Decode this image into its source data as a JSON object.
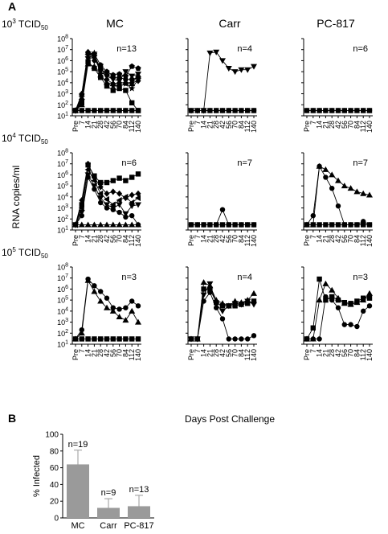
{
  "panel_a_label": "A",
  "panel_b_label": "B",
  "column_titles": [
    "MC",
    "Carr",
    "PC-817"
  ],
  "row_dose_base": [
    "10",
    "10",
    "10"
  ],
  "row_dose_exp": [
    "3",
    "4",
    "5"
  ],
  "row_dose_unit_main": "TCID",
  "row_dose_unit_sub": "50",
  "y_axis_label": "RNA copies/ml",
  "x_axis_label": "Days Post Challenge",
  "x_tick_labels": [
    "Pre",
    "7",
    "14",
    "21",
    "28",
    "42",
    "56",
    "70",
    "84",
    "112",
    "140"
  ],
  "y_tick_exponents": [
    "1",
    "2",
    "3",
    "4",
    "5",
    "6",
    "7",
    "8"
  ],
  "colors": {
    "bar": "#9a9a9a",
    "marker": "#000000",
    "axis": "#000000"
  },
  "chart_data": [
    {
      "type": "line",
      "row": 0,
      "col": 0,
      "title": "MC",
      "dose": "10^3 TCID50",
      "n_label": "n=13",
      "yscale": "log",
      "ylim": [
        10,
        100000000
      ],
      "x": [
        "Pre",
        "7",
        "14",
        "21",
        "28",
        "42",
        "56",
        "70",
        "84",
        "112",
        "140"
      ],
      "series": [
        {
          "marker": "circle",
          "values": [
            30,
            300,
            4000000,
            3000000,
            200000,
            50000,
            30000,
            30000,
            20000,
            20000,
            30000
          ]
        },
        {
          "marker": "pentagon",
          "values": [
            30,
            800,
            5000000,
            4000000,
            400000,
            100000,
            50000,
            60000,
            40000,
            300000,
            200000
          ]
        },
        {
          "marker": "star",
          "values": [
            30,
            500,
            3000000,
            5000000,
            60000,
            8000,
            5000,
            5000,
            8000,
            3000,
            20000
          ]
        },
        {
          "marker": "triangle-down",
          "values": [
            30,
            200,
            1500000,
            2000000,
            100000,
            40000,
            20000,
            15000,
            100000,
            40000,
            60000
          ]
        },
        {
          "marker": "diamond",
          "values": [
            30,
            1000,
            6000000,
            1000000,
            300000,
            20000,
            8000,
            10000,
            10000,
            10000,
            15000
          ]
        },
        {
          "marker": "square",
          "values": [
            30,
            150,
            800000,
            200000,
            30000,
            5000,
            2000,
            3000,
            2000,
            150,
            30
          ]
        },
        {
          "marker": "triangle-up",
          "values": [
            30,
            100,
            500000,
            300000,
            50000,
            10000,
            8000,
            9000,
            10000,
            8000,
            50000
          ]
        },
        {
          "marker": "circle",
          "values": [
            30,
            30,
            30,
            30,
            30,
            30,
            30,
            30,
            30,
            30,
            30
          ]
        },
        {
          "marker": "square",
          "values": [
            30,
            30,
            30,
            30,
            30,
            30,
            30,
            30,
            30,
            30,
            30
          ]
        }
      ]
    },
    {
      "type": "line",
      "row": 0,
      "col": 1,
      "title": "Carr",
      "dose": "10^3 TCID50",
      "n_label": "n=4",
      "yscale": "log",
      "ylim": [
        10,
        100000000
      ],
      "x": [
        "Pre",
        "7",
        "14",
        "21",
        "28",
        "42",
        "56",
        "70",
        "84",
        "112",
        "140"
      ],
      "series": [
        {
          "marker": "triangle-down",
          "values": [
            30,
            30,
            30,
            5000000,
            6000000,
            1000000,
            200000,
            100000,
            150000,
            150000,
            300000
          ],
          "start_index": 2
        },
        {
          "marker": "square",
          "values": [
            30,
            30,
            30,
            30,
            30,
            30,
            30,
            30,
            30,
            30,
            30
          ]
        },
        {
          "marker": "circle",
          "values": [
            30,
            30,
            30,
            30,
            30,
            30,
            30,
            30,
            30,
            30,
            30
          ]
        }
      ]
    },
    {
      "type": "line",
      "row": 0,
      "col": 2,
      "title": "PC-817",
      "dose": "10^3 TCID50",
      "n_label": "n=6",
      "yscale": "log",
      "ylim": [
        10,
        100000000
      ],
      "x": [
        "Pre",
        "7",
        "14",
        "21",
        "28",
        "42",
        "56",
        "70",
        "84",
        "112",
        "140"
      ],
      "series": [
        {
          "marker": "circle",
          "values": [
            30,
            30,
            30,
            30,
            30,
            30,
            30,
            30,
            30,
            30,
            30
          ]
        },
        {
          "marker": "square",
          "values": [
            30,
            30,
            30,
            30,
            30,
            30,
            30,
            30,
            30,
            30,
            30
          ]
        }
      ]
    },
    {
      "type": "line",
      "row": 1,
      "col": 0,
      "title": "MC",
      "dose": "10^4 TCID50",
      "n_label": "n=6",
      "yscale": "log",
      "ylim": [
        10,
        100000000
      ],
      "x": [
        "Pre",
        "7",
        "14",
        "21",
        "28",
        "42",
        "56",
        "70",
        "84",
        "112",
        "140"
      ],
      "series": [
        {
          "marker": "square",
          "values": [
            30,
            2000,
            8000000,
            800000,
            200000,
            200000,
            300000,
            500000,
            300000,
            600000,
            1200000
          ]
        },
        {
          "marker": "diamond",
          "values": [
            30,
            5000,
            10000000,
            600000,
            80000,
            20000,
            30000,
            20000,
            8000,
            15000,
            20000
          ]
        },
        {
          "marker": "triangle-left",
          "values": [
            30,
            1000,
            3000000,
            300000,
            20000,
            6000,
            2000,
            5000,
            10000,
            3000,
            8000
          ]
        },
        {
          "marker": "triangle-down",
          "values": [
            30,
            400,
            1000000,
            100000,
            8000,
            2000,
            1000,
            2000,
            300,
            1500,
            2000
          ]
        },
        {
          "marker": "circle",
          "values": [
            30,
            200,
            600000,
            50000,
            3000,
            1000,
            700,
            400,
            150,
            200,
            30
          ]
        },
        {
          "marker": "triangle-up",
          "values": [
            30,
            30,
            30,
            30,
            30,
            30,
            30,
            30,
            30,
            30,
            30
          ]
        }
      ]
    },
    {
      "type": "line",
      "row": 1,
      "col": 1,
      "title": "Carr",
      "dose": "10^4 TCID50",
      "n_label": "n=7",
      "yscale": "log",
      "ylim": [
        10,
        100000000
      ],
      "x": [
        "Pre",
        "7",
        "14",
        "21",
        "28",
        "42",
        "56",
        "70",
        "84",
        "112",
        "140"
      ],
      "series": [
        {
          "marker": "circle",
          "values": [
            30,
            30,
            30,
            30,
            30,
            700,
            30,
            30,
            30,
            30,
            30
          ]
        },
        {
          "marker": "square",
          "values": [
            30,
            30,
            30,
            30,
            30,
            30,
            30,
            30,
            30,
            30,
            30
          ]
        }
      ]
    },
    {
      "type": "line",
      "row": 1,
      "col": 2,
      "title": "PC-817",
      "dose": "10^4 TCID50",
      "n_label": "n=7",
      "yscale": "log",
      "ylim": [
        10,
        100000000
      ],
      "x": [
        "Pre",
        "7",
        "14",
        "21",
        "28",
        "42",
        "56",
        "70",
        "84",
        "112",
        "140"
      ],
      "series": [
        {
          "marker": "triangle-up",
          "values": [
            30,
            30,
            6000000,
            3000000,
            1000000,
            300000,
            100000,
            60000,
            30000,
            20000,
            15000
          ]
        },
        {
          "marker": "circle",
          "values": [
            30,
            200,
            6000000,
            600000,
            60000,
            1500,
            30,
            30,
            30,
            60,
            30
          ]
        },
        {
          "marker": "square",
          "values": [
            30,
            30,
            30,
            30,
            30,
            30,
            30,
            30,
            30,
            30,
            30
          ]
        }
      ]
    },
    {
      "type": "line",
      "row": 2,
      "col": 0,
      "title": "MC",
      "dose": "10^5 TCID50",
      "n_label": "n=3",
      "yscale": "log",
      "ylim": [
        10,
        100000000
      ],
      "x": [
        "Pre",
        "7",
        "14",
        "21",
        "28",
        "42",
        "56",
        "70",
        "84",
        "112",
        "140"
      ],
      "series": [
        {
          "marker": "circle",
          "values": [
            30,
            200,
            8000000,
            2000000,
            600000,
            150000,
            20000,
            15000,
            20000,
            80000,
            30000
          ]
        },
        {
          "marker": "triangle-up",
          "values": [
            30,
            100,
            6000000,
            600000,
            80000,
            20000,
            10000,
            3000,
            1500,
            10000,
            1000
          ]
        },
        {
          "marker": "square",
          "values": [
            30,
            30,
            30,
            30,
            30,
            30,
            30,
            30,
            30,
            30,
            30
          ]
        }
      ]
    },
    {
      "type": "line",
      "row": 2,
      "col": 1,
      "title": "Carr",
      "dose": "10^5 TCID50",
      "n_label": "n=4",
      "yscale": "log",
      "ylim": [
        10,
        100000000
      ],
      "x": [
        "Pre",
        "7",
        "14",
        "21",
        "28",
        "42",
        "56",
        "70",
        "84",
        "112",
        "140"
      ],
      "series": [
        {
          "marker": "triangle-up",
          "values": [
            30,
            30,
            4000000,
            2000000,
            100000,
            50000,
            30000,
            80000,
            60000,
            100000,
            400000
          ]
        },
        {
          "marker": "square",
          "values": [
            30,
            30,
            1000000,
            1000000,
            60000,
            30000,
            30000,
            30000,
            40000,
            50000,
            80000
          ]
        },
        {
          "marker": "triangle-down",
          "values": [
            30,
            30,
            300000,
            3000000,
            40000,
            10000,
            30000,
            50000,
            40000,
            80000,
            40000
          ]
        },
        {
          "marker": "circle",
          "values": [
            30,
            30,
            80000,
            500000,
            20000,
            2000,
            30,
            30,
            30,
            30,
            60
          ]
        }
      ]
    },
    {
      "type": "line",
      "row": 2,
      "col": 2,
      "title": "PC-817",
      "dose": "10^5 TCID50",
      "n_label": "n=3",
      "yscale": "log",
      "ylim": [
        10,
        100000000
      ],
      "x": [
        "Pre",
        "7",
        "14",
        "21",
        "28",
        "42",
        "56",
        "70",
        "84",
        "112",
        "140"
      ],
      "series": [
        {
          "marker": "square",
          "values": [
            30,
            300,
            8000000,
            100000,
            200000,
            100000,
            60000,
            50000,
            80000,
            150000,
            150000
          ]
        },
        {
          "marker": "triangle-up",
          "values": [
            30,
            30,
            100000,
            3000000,
            800000,
            150000,
            50000,
            40000,
            60000,
            100000,
            400000
          ]
        },
        {
          "marker": "circle",
          "values": [
            30,
            30,
            30,
            200000,
            100000,
            20000,
            600,
            600,
            400,
            10000,
            30000
          ]
        }
      ]
    },
    {
      "type": "bar",
      "panel": "B",
      "categories": [
        "MC",
        "Carr",
        "PC-817"
      ],
      "values": [
        64,
        12,
        14
      ],
      "error": [
        17,
        11,
        13
      ],
      "bar_labels": [
        "n=19",
        "n=9",
        "n=13"
      ],
      "ylabel": "% Infected",
      "ylim": [
        0,
        100
      ],
      "yticks": [
        "0",
        "20",
        "40",
        "60",
        "80",
        "100"
      ]
    }
  ]
}
